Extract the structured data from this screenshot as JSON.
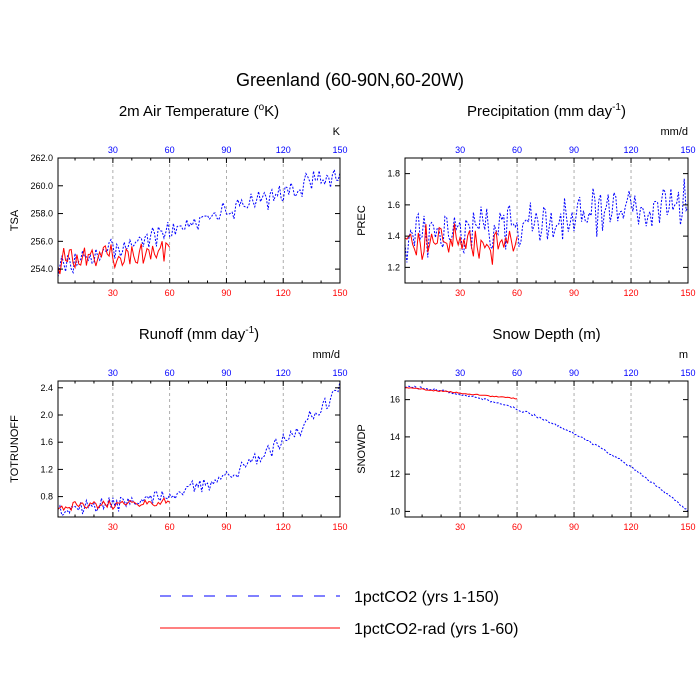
{
  "figure": {
    "title": "Greenland (60-90N,60-20W)"
  },
  "colors": {
    "series_1pctCO2": "#0000ff",
    "series_rad": "#ff0000",
    "tick_top": "#0000ff",
    "tick_bottom": "#ff0000",
    "axis": "#000000",
    "grid": "#999999"
  },
  "legend": {
    "placement": "bottom-center",
    "items": [
      {
        "label": "1pctCO2 (yrs 1-150)",
        "style": "dashed",
        "color": "#0000ff"
      },
      {
        "label": "1pctCO2-rad (yrs 1-60)",
        "style": "solid",
        "color": "#ff0000"
      }
    ]
  },
  "chart_data": [
    {
      "type": "line",
      "title_main": "2m Air Temperature (",
      "title_sup": "o",
      "title_end": "K)",
      "ylabel": "TSA",
      "units": "K",
      "xlim": [
        1,
        150
      ],
      "ylim": [
        253.0,
        262.0
      ],
      "xticks": [
        30,
        60,
        90,
        120,
        150
      ],
      "yticks": [
        254.0,
        256.0,
        258.0,
        260.0,
        262.0
      ],
      "ytick_labels": [
        "254.0",
        "256.0",
        "258.0",
        "260.0",
        "262.0"
      ],
      "grid_x": true,
      "series": [
        {
          "key": "co2",
          "start": 254.1,
          "end": 260.9,
          "amp": 0.75,
          "jitter": 0.55,
          "years": 150,
          "style": "dashed"
        },
        {
          "key": "rad",
          "start": 254.6,
          "end": 255.4,
          "amp": 0.8,
          "jitter": 0.6,
          "years": 60,
          "style": "solid"
        }
      ]
    },
    {
      "type": "line",
      "title_main": "Precipitation (mm day",
      "title_sup": "-1",
      "title_end": ")",
      "ylabel": "PREC",
      "units": "mm/d",
      "xlim": [
        1,
        150
      ],
      "ylim": [
        1.1,
        1.9
      ],
      "xticks": [
        30,
        60,
        90,
        120,
        150
      ],
      "yticks": [
        1.2,
        1.4,
        1.6,
        1.8
      ],
      "ytick_labels": [
        "1.2",
        "1.4",
        "1.6",
        "1.8"
      ],
      "grid_x": true,
      "series": [
        {
          "key": "co2",
          "start": 1.38,
          "end": 1.62,
          "amp": 0.14,
          "jitter": 0.1,
          "years": 150,
          "style": "dashed"
        },
        {
          "key": "rad",
          "start": 1.38,
          "end": 1.33,
          "amp": 0.1,
          "jitter": 0.08,
          "years": 60,
          "style": "solid"
        }
      ]
    },
    {
      "type": "line",
      "title_main": "Runoff (mm day",
      "title_sup": "-1",
      "title_end": ")",
      "ylabel": "TOTRUNOFF",
      "units": "mm/d",
      "xlim": [
        1,
        150
      ],
      "ylim": [
        0.5,
        2.5
      ],
      "xticks": [
        30,
        60,
        90,
        120,
        150
      ],
      "yticks": [
        0.8,
        1.2,
        1.6,
        2.0,
        2.4
      ],
      "ytick_labels": [
        "0.8",
        "1.2",
        "1.6",
        "2.0",
        "2.4"
      ],
      "grid_x": true,
      "series": [
        {
          "key": "co2",
          "curve": "runoff",
          "amp": 0.08,
          "jitter": 0.09,
          "years": 150,
          "style": "dashed"
        },
        {
          "key": "rad",
          "start": 0.65,
          "end": 0.72,
          "amp": 0.05,
          "jitter": 0.05,
          "years": 60,
          "style": "solid"
        }
      ]
    },
    {
      "type": "line",
      "title_main": "Snow Depth (m)",
      "title_sup": "",
      "title_end": "",
      "ylabel": "SNOWDP",
      "units": "m",
      "xlim": [
        1,
        150
      ],
      "ylim": [
        9.7,
        17.0
      ],
      "xticks": [
        30,
        60,
        90,
        120,
        150
      ],
      "yticks": [
        10,
        12,
        14,
        16
      ],
      "ytick_labels": [
        "10",
        "12",
        "14",
        "16"
      ],
      "grid_x": true,
      "series": [
        {
          "key": "co2",
          "curve": "snow",
          "amp": 0.02,
          "jitter": 0.06,
          "years": 150,
          "style": "dashed"
        },
        {
          "key": "rad",
          "curve": "snow_rad",
          "amp": 0.01,
          "jitter": 0.03,
          "years": 60,
          "style": "solid"
        }
      ]
    }
  ]
}
